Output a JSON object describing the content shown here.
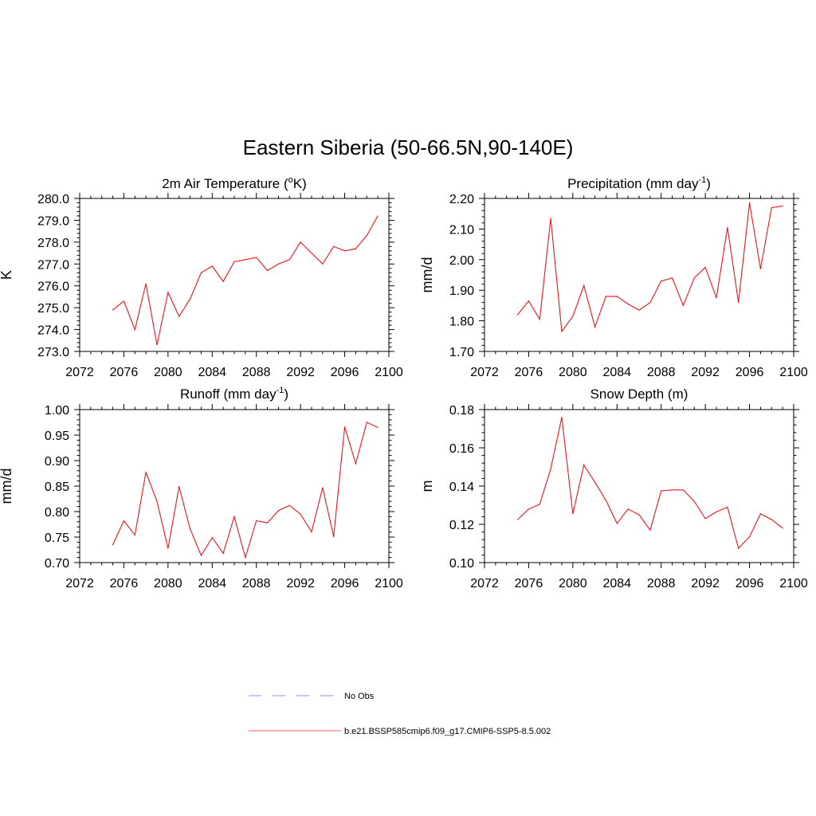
{
  "title": "Eastern Siberia (50-66.5N,90-140E)",
  "colors": {
    "series": "#e8141c",
    "obs": "#a8a8f0",
    "axis": "#000000"
  },
  "legend": {
    "entries": [
      {
        "label": "No Obs",
        "style": "dashed",
        "color": "#a8a8f0"
      },
      {
        "label": "b.e21.BSSP585cmip6.f09_g17.CMIP6-SSP5-8.5.002",
        "style": "solid",
        "color": "#f08080"
      }
    ]
  },
  "chart_data": [
    {
      "type": "line",
      "title_main": "2m Air Temperature (",
      "title_sup": "o",
      "title_end": "K)",
      "ylabel": "K",
      "xlim": [
        2072,
        2100
      ],
      "ylim": [
        273.0,
        280.0
      ],
      "xticks": [
        2072,
        2076,
        2080,
        2084,
        2088,
        2092,
        2096,
        2100
      ],
      "yticks": [
        "273.0",
        "274.0",
        "275.0",
        "276.0",
        "277.0",
        "278.0",
        "279.0",
        "280.0"
      ],
      "x": [
        2075,
        2076,
        2077,
        2078,
        2079,
        2080,
        2081,
        2082,
        2083,
        2084,
        2085,
        2086,
        2087,
        2088,
        2089,
        2090,
        2091,
        2092,
        2093,
        2094,
        2095,
        2096,
        2097,
        2098,
        2099
      ],
      "values": [
        274.9,
        275.3,
        274.0,
        276.1,
        273.3,
        275.7,
        274.6,
        275.4,
        276.6,
        276.9,
        276.2,
        277.1,
        277.2,
        277.3,
        276.7,
        277.0,
        277.2,
        278.0,
        277.5,
        277.0,
        277.8,
        277.6,
        277.7,
        278.3,
        279.2
      ]
    },
    {
      "type": "line",
      "title_main": "Precipitation (mm day",
      "title_sup": "-1",
      "title_end": ")",
      "ylabel": "mm/d",
      "xlim": [
        2072,
        2100
      ],
      "ylim": [
        1.7,
        2.2
      ],
      "xticks": [
        2072,
        2076,
        2080,
        2084,
        2088,
        2092,
        2096,
        2100
      ],
      "yticks": [
        "1.70",
        "1.80",
        "1.90",
        "2.00",
        "2.10",
        "2.20"
      ],
      "x": [
        2075,
        2076,
        2077,
        2078,
        2079,
        2080,
        2081,
        2082,
        2083,
        2084,
        2085,
        2086,
        2087,
        2088,
        2089,
        2090,
        2091,
        2092,
        2093,
        2094,
        2095,
        2096,
        2097,
        2098,
        2099
      ],
      "values": [
        1.82,
        1.865,
        1.805,
        2.135,
        1.765,
        1.815,
        1.915,
        1.78,
        1.88,
        1.88,
        1.855,
        1.835,
        1.86,
        1.93,
        1.94,
        1.85,
        1.94,
        1.975,
        1.875,
        2.105,
        1.86,
        2.185,
        1.97,
        2.17,
        2.175
      ]
    },
    {
      "type": "line",
      "title_main": "Runoff (mm day",
      "title_sup": "-1",
      "title_end": ")",
      "ylabel": "mm/d",
      "xlim": [
        2072,
        2100
      ],
      "ylim": [
        0.7,
        1.0
      ],
      "xticks": [
        2072,
        2076,
        2080,
        2084,
        2088,
        2092,
        2096,
        2100
      ],
      "yticks": [
        "0.70",
        "0.75",
        "0.80",
        "0.85",
        "0.90",
        "0.95",
        "1.00"
      ],
      "x": [
        2075,
        2076,
        2077,
        2078,
        2079,
        2080,
        2081,
        2082,
        2083,
        2084,
        2085,
        2086,
        2087,
        2088,
        2089,
        2090,
        2091,
        2092,
        2093,
        2094,
        2095,
        2096,
        2097,
        2098,
        2099
      ],
      "values": [
        0.735,
        0.782,
        0.754,
        0.877,
        0.82,
        0.728,
        0.849,
        0.766,
        0.714,
        0.749,
        0.718,
        0.79,
        0.71,
        0.782,
        0.778,
        0.802,
        0.812,
        0.795,
        0.76,
        0.847,
        0.751,
        0.966,
        0.894,
        0.975,
        0.965
      ]
    },
    {
      "type": "line",
      "title_main": "Snow Depth (m)",
      "title_sup": "",
      "title_end": "",
      "ylabel": "m",
      "xlim": [
        2072,
        2100
      ],
      "ylim": [
        0.1,
        0.18
      ],
      "xticks": [
        2072,
        2076,
        2080,
        2084,
        2088,
        2092,
        2096,
        2100
      ],
      "yticks": [
        "0.10",
        "0.12",
        "0.14",
        "0.16",
        "0.18"
      ],
      "x": [
        2075,
        2076,
        2077,
        2078,
        2079,
        2080,
        2081,
        2082,
        2083,
        2084,
        2085,
        2086,
        2087,
        2088,
        2089,
        2090,
        2091,
        2092,
        2093,
        2094,
        2095,
        2096,
        2097,
        2098,
        2099
      ],
      "values": [
        0.1225,
        0.128,
        0.1305,
        0.149,
        0.176,
        0.1255,
        0.151,
        0.142,
        0.1325,
        0.1205,
        0.128,
        0.125,
        0.117,
        0.1375,
        0.138,
        0.138,
        0.132,
        0.123,
        0.1265,
        0.129,
        0.1075,
        0.1135,
        0.1255,
        0.1225,
        0.118
      ]
    }
  ]
}
